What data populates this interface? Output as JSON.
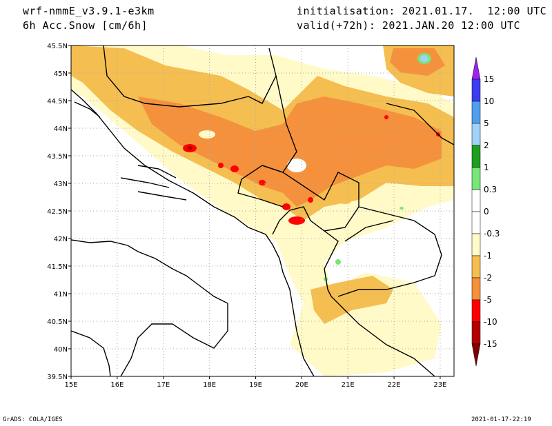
{
  "header": {
    "model": "wrf-nmmE_v3.9.1-e3km",
    "field": "6h Acc.Snow [cm/6h]",
    "init": "initialisation: 2021.01.17.  12:00 UTC",
    "valid": "valid(+72h): 2021.JAN.20 12:00 UTC"
  },
  "map": {
    "lon_range": [
      15,
      23.3
    ],
    "lat_range": [
      39.5,
      45.5
    ],
    "lon_ticks": [
      "15E",
      "16E",
      "17E",
      "18E",
      "19E",
      "20E",
      "21E",
      "22E",
      "23E"
    ],
    "lat_ticks": [
      "45.5N",
      "45N",
      "44.5N",
      "44N",
      "43.5N",
      "43N",
      "42.5N",
      "42N",
      "41.5N",
      "41N",
      "40.5N",
      "40N",
      "39.5N"
    ],
    "grid": true
  },
  "colorbar": {
    "labels": [
      "15",
      "10",
      "5",
      "2",
      "1",
      "0.3",
      "0",
      "-0.3",
      "-1",
      "-2",
      "-5",
      "-10",
      "-15"
    ],
    "colors": [
      "#a020f0",
      "#3c3cf0",
      "#50a0f0",
      "#a0d2fa",
      "#1e9e1e",
      "#78e678",
      "#ffffff",
      "#ffffff",
      "#fffac8",
      "#f5be50",
      "#f5913c",
      "#ff0000",
      "#b40000",
      "#800000"
    ]
  },
  "footer": {
    "left": "GrADS: COLA/IGES",
    "right": "2021-01-17-22:19"
  }
}
